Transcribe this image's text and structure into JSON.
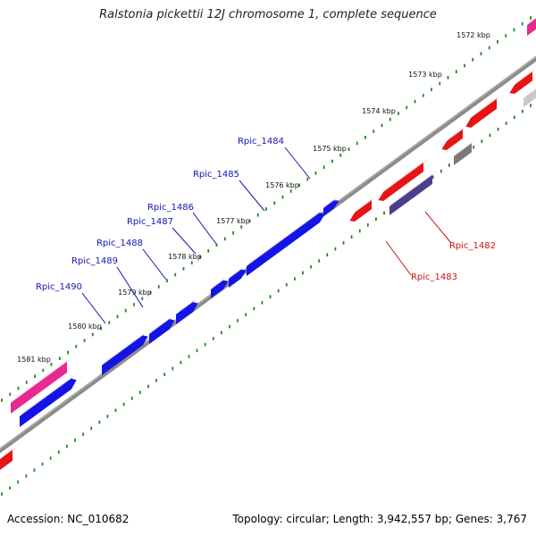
{
  "title": "Ralstonia pickettii 12J chromosome 1, complete sequence",
  "footer": {
    "accession": "Accession: NC_010682",
    "summary": "Topology: circular; Length: 3,942,557 bp; Genes: 3,767"
  },
  "colors": {
    "backbone": "#8c8c8c",
    "tick": "#1a8a1a",
    "forward_gene": "#1414e6",
    "reverse_gene": "#e61414",
    "pink_feature": "#e8298f",
    "gray_feature": "#7a7a7a",
    "purple_feature": "#4b3f8c",
    "light_gray_feature": "#c8c8c8",
    "forward_label": "#1414b4",
    "reverse_label": "#c81414"
  },
  "kbp_ticks": [
    "1572 kbp",
    "1573 kbp",
    "1574 kbp",
    "1575 kbp",
    "1576 kbp",
    "1577 kbp",
    "1578 kbp",
    "1579 kbp",
    "1580 kbp",
    "1581 kbp"
  ],
  "gene_labels_forward": [
    "Rpic_1484",
    "Rpic_1485",
    "Rpic_1486",
    "Rpic_1487",
    "Rpic_1488",
    "Rpic_1489",
    "Rpic_1490"
  ],
  "gene_labels_reverse": [
    "Rpic_1482",
    "Rpic_1483"
  ]
}
